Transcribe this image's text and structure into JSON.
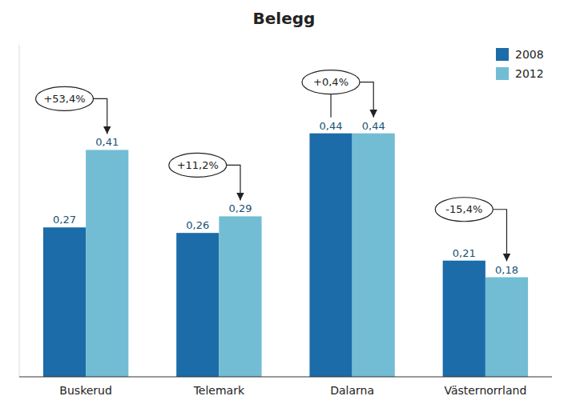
{
  "chart_data": {
    "type": "bar",
    "title": "Belegg",
    "categories": [
      "Buskerud",
      "Telemark",
      "Dalarna",
      "Västernorrland"
    ],
    "series": [
      {
        "name": "2008",
        "color": "#1B6CA8",
        "values": [
          0.27,
          0.26,
          0.44,
          0.21
        ],
        "value_labels": [
          "0,27",
          "0,26",
          "0,44",
          "0,21"
        ]
      },
      {
        "name": "2012",
        "color": "#72BDD4",
        "values": [
          0.41,
          0.29,
          0.44,
          0.18
        ],
        "value_labels": [
          "0,41",
          "0,29",
          "0,44",
          "0,18"
        ]
      }
    ],
    "annotations": [
      "+53,4%",
      "+11,2%",
      "+0,4%",
      "-15,4%"
    ],
    "ylim": [
      0,
      0.6
    ],
    "tick_labels": "x",
    "data_labels": true,
    "legend": "upper right",
    "grid": false
  }
}
